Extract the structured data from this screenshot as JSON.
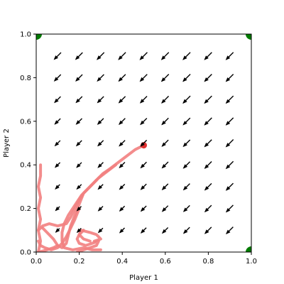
{
  "chart_data": {
    "type": "quiver",
    "title": "",
    "xlabel": "Player 1",
    "ylabel": "Player 2",
    "xlim": [
      0.0,
      1.0
    ],
    "ylim": [
      0.0,
      1.0
    ],
    "xticks": [
      "0.0",
      "0.2",
      "0.4",
      "0.6",
      "0.8",
      "1.0"
    ],
    "yticks": [
      "0.0",
      "0.2",
      "0.4",
      "0.6",
      "0.8",
      "1.0"
    ],
    "grid": false,
    "legend": "none",
    "colors": {
      "arrow": "#000000",
      "trajectory": "#f28080",
      "corner": "#007a00",
      "start": "#e03030"
    },
    "field": {
      "x": [
        0.1,
        0.2,
        0.3,
        0.4,
        0.5,
        0.6,
        0.7,
        0.8,
        0.9
      ],
      "y": [
        0.1,
        0.2,
        0.3,
        0.4,
        0.5,
        0.6,
        0.7,
        0.8,
        0.9
      ],
      "direction": [
        -1,
        -1
      ]
    },
    "fixed_points": [
      {
        "x": 0.0,
        "y": 1.0
      },
      {
        "x": 1.0,
        "y": 1.0
      },
      {
        "x": 1.0,
        "y": 0.0
      }
    ],
    "trajectory_start": {
      "x": 0.5,
      "y": 0.49
    },
    "trajectories": [
      [
        [
          0.5,
          0.49
        ],
        [
          0.46,
          0.47
        ],
        [
          0.42,
          0.44
        ],
        [
          0.38,
          0.41
        ],
        [
          0.34,
          0.38
        ],
        [
          0.31,
          0.36
        ],
        [
          0.27,
          0.32
        ],
        [
          0.24,
          0.29
        ],
        [
          0.21,
          0.26
        ],
        [
          0.19,
          0.23
        ],
        [
          0.17,
          0.2
        ],
        [
          0.15,
          0.17
        ],
        [
          0.13,
          0.13
        ],
        [
          0.12,
          0.09
        ],
        [
          0.12,
          0.05
        ],
        [
          0.13,
          0.02
        ],
        [
          0.17,
          0.01
        ],
        [
          0.22,
          0.02
        ],
        [
          0.26,
          0.01
        ],
        [
          0.3,
          0.01
        ]
      ],
      [
        [
          0.37,
          0.4
        ],
        [
          0.33,
          0.37
        ],
        [
          0.29,
          0.34
        ],
        [
          0.25,
          0.3
        ],
        [
          0.22,
          0.27
        ],
        [
          0.2,
          0.22
        ],
        [
          0.18,
          0.17
        ],
        [
          0.16,
          0.12
        ],
        [
          0.15,
          0.08
        ],
        [
          0.14,
          0.04
        ],
        [
          0.12,
          0.02
        ],
        [
          0.1,
          0.03
        ],
        [
          0.08,
          0.06
        ],
        [
          0.05,
          0.09
        ],
        [
          0.03,
          0.11
        ]
      ],
      [
        [
          0.28,
          0.33
        ],
        [
          0.25,
          0.3
        ],
        [
          0.22,
          0.27
        ],
        [
          0.2,
          0.24
        ],
        [
          0.18,
          0.2
        ],
        [
          0.16,
          0.16
        ],
        [
          0.14,
          0.13
        ],
        [
          0.1,
          0.12
        ],
        [
          0.06,
          0.13
        ],
        [
          0.03,
          0.12
        ],
        [
          0.01,
          0.1
        ]
      ],
      [
        [
          0.2,
          0.2
        ],
        [
          0.18,
          0.15
        ],
        [
          0.16,
          0.11
        ],
        [
          0.14,
          0.07
        ],
        [
          0.12,
          0.04
        ],
        [
          0.1,
          0.02
        ],
        [
          0.07,
          0.01
        ],
        [
          0.04,
          0.02
        ],
        [
          0.02,
          0.03
        ],
        [
          0.01,
          0.05
        ]
      ],
      [
        [
          0.22,
          0.1
        ],
        [
          0.2,
          0.08
        ],
        [
          0.19,
          0.06
        ],
        [
          0.2,
          0.04
        ],
        [
          0.23,
          0.03
        ],
        [
          0.26,
          0.04
        ],
        [
          0.29,
          0.05
        ],
        [
          0.28,
          0.03
        ],
        [
          0.25,
          0.02
        ],
        [
          0.22,
          0.01
        ],
        [
          0.19,
          0.0
        ]
      ],
      [
        [
          0.25,
          0.05
        ],
        [
          0.22,
          0.06
        ],
        [
          0.2,
          0.08
        ],
        [
          0.21,
          0.1
        ],
        [
          0.25,
          0.09
        ],
        [
          0.28,
          0.08
        ],
        [
          0.3,
          0.06
        ],
        [
          0.27,
          0.05
        ]
      ],
      [
        [
          0.02,
          0.4
        ],
        [
          0.02,
          0.35
        ],
        [
          0.01,
          0.3
        ],
        [
          0.02,
          0.25
        ],
        [
          0.01,
          0.2
        ],
        [
          0.02,
          0.15
        ],
        [
          0.01,
          0.1
        ],
        [
          0.02,
          0.05
        ],
        [
          0.01,
          0.0
        ]
      ],
      [
        [
          0.1,
          0.03
        ],
        [
          0.08,
          0.02
        ],
        [
          0.05,
          0.01
        ],
        [
          0.03,
          0.005
        ],
        [
          0.01,
          0.0
        ]
      ]
    ]
  }
}
